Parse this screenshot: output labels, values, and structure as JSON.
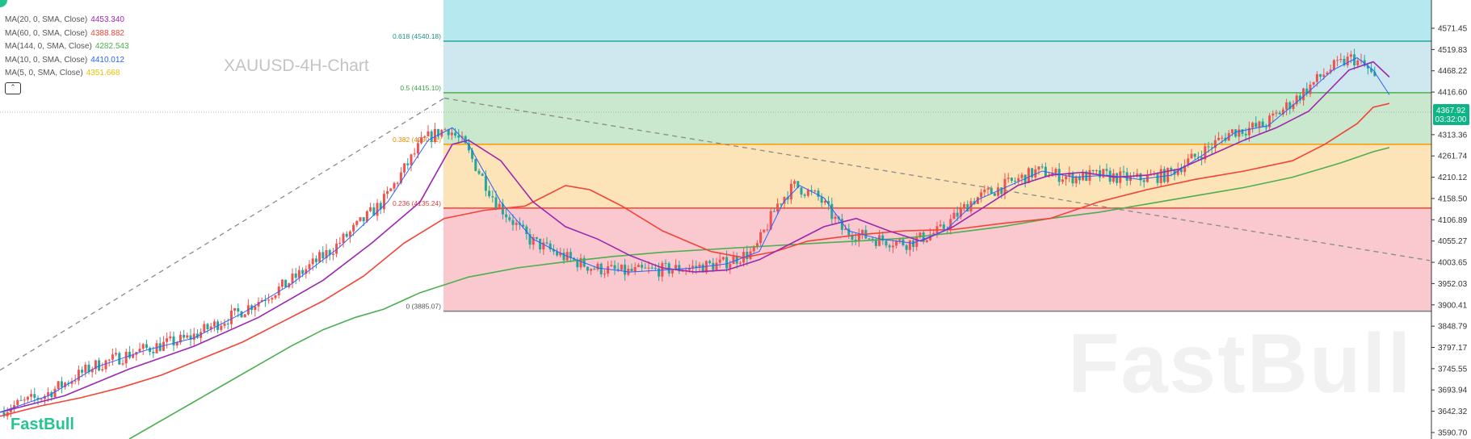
{
  "chart_data": {
    "type": "candlestick",
    "title": "XAUUSD-4H-Chart",
    "symbol": "XAUUSD",
    "timeframe": "4H",
    "ylim": [
      3575,
      4640
    ],
    "y_ticks": [
      "4571.45",
      "4519.83",
      "4468.22",
      "4416.60",
      "4313.36",
      "4261.74",
      "4210.12",
      "4158.50",
      "4106.89",
      "4055.27",
      "4003.65",
      "3952.03",
      "3900.41",
      "3848.79",
      "3797.17",
      "3745.55",
      "3693.94",
      "3642.32",
      "3590.70"
    ],
    "last_price": "4367.92",
    "countdown": "03:32:00",
    "indicators": [
      {
        "label": "MA(20, 0, SMA, Close)",
        "value": "4453.340",
        "color": "#9c27b0"
      },
      {
        "label": "MA(60, 0, SMA, Close)",
        "value": "4388.882",
        "color": "#f44336"
      },
      {
        "label": "MA(144, 0, SMA, Close)",
        "value": "4282.543",
        "color": "#4caf50"
      },
      {
        "label": "MA(10, 0, SMA, Close)",
        "value": "4410.012",
        "color": "#2962ff"
      },
      {
        "label": "MA(5, 0, SMA, Close)",
        "value": "4351.668",
        "color": "#f5d300"
      }
    ],
    "fib_levels": [
      {
        "label": "0.618 (4540.18)",
        "price": 4540.18,
        "line": "#26a69a",
        "fill": "#cfe8f0",
        "label_color": "#1f8f84"
      },
      {
        "label": "0.5 (4415.10)",
        "price": 4415.1,
        "line": "#4caf50",
        "fill": "#c9e8cd",
        "label_color": "#3e9e43"
      },
      {
        "label": "0.382 (4290.01)",
        "price": 4290.01,
        "line": "#ff9800",
        "fill": "#fde3b8",
        "label_color": "#e68a00"
      },
      {
        "label": "0.236 (4135.24)",
        "price": 4135.24,
        "line": "#f44336",
        "fill": "#fac8cf",
        "label_color": "#e53935"
      },
      {
        "label": "0 (3885.07)",
        "price": 3885.07,
        "line": "#787b86",
        "fill": null,
        "label_color": "#555555"
      }
    ],
    "fib_top_fill": "#b6e9ef",
    "ma_series": [
      {
        "name": "MA(144)",
        "color": "#4caf50",
        "points": [
          [
            0.16,
            3575
          ],
          [
            0.2,
            3620
          ],
          [
            0.24,
            3665
          ],
          [
            0.28,
            3710
          ],
          [
            0.32,
            3755
          ],
          [
            0.36,
            3800
          ],
          [
            0.4,
            3840
          ],
          [
            0.44,
            3870
          ],
          [
            0.475,
            3890
          ],
          [
            0.52,
            3930
          ],
          [
            0.58,
            3968
          ],
          [
            0.64,
            3990
          ],
          [
            0.7,
            4005
          ],
          [
            0.76,
            4018
          ],
          [
            0.82,
            4028
          ],
          [
            0.88,
            4035
          ],
          [
            0.94,
            4042
          ],
          [
            1.0,
            4049
          ],
          [
            1.06,
            4055
          ],
          [
            1.12,
            4062
          ],
          [
            1.18,
            4075
          ],
          [
            1.24,
            4090
          ],
          [
            1.3,
            4110
          ],
          [
            1.36,
            4125
          ],
          [
            1.42,
            4145
          ],
          [
            1.48,
            4165
          ],
          [
            1.54,
            4185
          ],
          [
            1.6,
            4210
          ],
          [
            1.66,
            4245
          ],
          [
            1.7,
            4272
          ],
          [
            1.72,
            4282
          ]
        ]
      },
      {
        "name": "MA(60)",
        "color": "#f44336",
        "points": [
          [
            0.0,
            3630
          ],
          [
            0.05,
            3655
          ],
          [
            0.1,
            3675
          ],
          [
            0.15,
            3700
          ],
          [
            0.2,
            3730
          ],
          [
            0.25,
            3770
          ],
          [
            0.3,
            3810
          ],
          [
            0.35,
            3860
          ],
          [
            0.4,
            3910
          ],
          [
            0.45,
            3970
          ],
          [
            0.5,
            4050
          ],
          [
            0.55,
            4110
          ],
          [
            0.6,
            4130
          ],
          [
            0.65,
            4140
          ],
          [
            0.7,
            4190
          ],
          [
            0.73,
            4180
          ],
          [
            0.77,
            4140
          ],
          [
            0.82,
            4080
          ],
          [
            0.88,
            4030
          ],
          [
            0.92,
            4015
          ],
          [
            0.96,
            4030
          ],
          [
            1.0,
            4055
          ],
          [
            1.06,
            4070
          ],
          [
            1.12,
            4080
          ],
          [
            1.18,
            4083
          ],
          [
            1.24,
            4098
          ],
          [
            1.3,
            4110
          ],
          [
            1.36,
            4150
          ],
          [
            1.42,
            4180
          ],
          [
            1.48,
            4205
          ],
          [
            1.54,
            4225
          ],
          [
            1.6,
            4250
          ],
          [
            1.64,
            4290
          ],
          [
            1.68,
            4340
          ],
          [
            1.7,
            4380
          ],
          [
            1.72,
            4389
          ]
        ]
      },
      {
        "name": "MA(20)",
        "color": "#9c27b0",
        "points": [
          [
            0.0,
            3640
          ],
          [
            0.08,
            3680
          ],
          [
            0.16,
            3745
          ],
          [
            0.24,
            3800
          ],
          [
            0.32,
            3870
          ],
          [
            0.4,
            3960
          ],
          [
            0.46,
            4050
          ],
          [
            0.52,
            4150
          ],
          [
            0.56,
            4290
          ],
          [
            0.58,
            4300
          ],
          [
            0.62,
            4250
          ],
          [
            0.66,
            4150
          ],
          [
            0.7,
            4090
          ],
          [
            0.74,
            4060
          ],
          [
            0.78,
            4020
          ],
          [
            0.82,
            3990
          ],
          [
            0.86,
            3980
          ],
          [
            0.9,
            3985
          ],
          [
            0.94,
            4010
          ],
          [
            0.98,
            4050
          ],
          [
            1.02,
            4090
          ],
          [
            1.06,
            4110
          ],
          [
            1.1,
            4080
          ],
          [
            1.14,
            4055
          ],
          [
            1.18,
            4090
          ],
          [
            1.22,
            4140
          ],
          [
            1.26,
            4190
          ],
          [
            1.3,
            4215
          ],
          [
            1.34,
            4222
          ],
          [
            1.38,
            4210
          ],
          [
            1.42,
            4215
          ],
          [
            1.46,
            4230
          ],
          [
            1.5,
            4265
          ],
          [
            1.54,
            4300
          ],
          [
            1.58,
            4330
          ],
          [
            1.62,
            4370
          ],
          [
            1.64,
            4410
          ],
          [
            1.67,
            4470
          ],
          [
            1.7,
            4490
          ],
          [
            1.72,
            4453
          ]
        ]
      },
      {
        "name": "MA(10)",
        "color": "#2962ff",
        "points": [
          [
            0.0,
            3640
          ],
          [
            0.06,
            3680
          ],
          [
            0.12,
            3750
          ],
          [
            0.18,
            3790
          ],
          [
            0.24,
            3820
          ],
          [
            0.3,
            3880
          ],
          [
            0.36,
            3950
          ],
          [
            0.42,
            4040
          ],
          [
            0.48,
            4150
          ],
          [
            0.53,
            4300
          ],
          [
            0.56,
            4330
          ],
          [
            0.58,
            4290
          ],
          [
            0.62,
            4150
          ],
          [
            0.66,
            4060
          ],
          [
            0.7,
            4020
          ],
          [
            0.74,
            3990
          ],
          [
            0.78,
            3980
          ],
          [
            0.82,
            3985
          ],
          [
            0.86,
            3990
          ],
          [
            0.9,
            4000
          ],
          [
            0.94,
            4030
          ],
          [
            0.97,
            4150
          ],
          [
            0.99,
            4190
          ],
          [
            1.02,
            4160
          ],
          [
            1.05,
            4080
          ],
          [
            1.09,
            4060
          ],
          [
            1.13,
            4050
          ],
          [
            1.17,
            4080
          ],
          [
            1.21,
            4155
          ],
          [
            1.25,
            4190
          ],
          [
            1.29,
            4225
          ],
          [
            1.33,
            4210
          ],
          [
            1.37,
            4215
          ],
          [
            1.41,
            4205
          ],
          [
            1.45,
            4215
          ],
          [
            1.49,
            4265
          ],
          [
            1.53,
            4320
          ],
          [
            1.57,
            4335
          ],
          [
            1.61,
            4400
          ],
          [
            1.65,
            4470
          ],
          [
            1.68,
            4500
          ],
          [
            1.7,
            4470
          ],
          [
            1.72,
            4410
          ]
        ]
      }
    ],
    "trendlines": [
      {
        "from": [
          0.0,
          3742
        ],
        "to": [
          0.55,
          4402
        ],
        "style": "dashed",
        "color": "#8a8a8a"
      },
      {
        "from": [
          0.55,
          4402
        ],
        "to": [
          1.77,
          4008
        ],
        "style": "dashed",
        "color": "#8a8a8a"
      }
    ]
  },
  "watermark": {
    "large": "FastBull",
    "small": "FastBull"
  }
}
